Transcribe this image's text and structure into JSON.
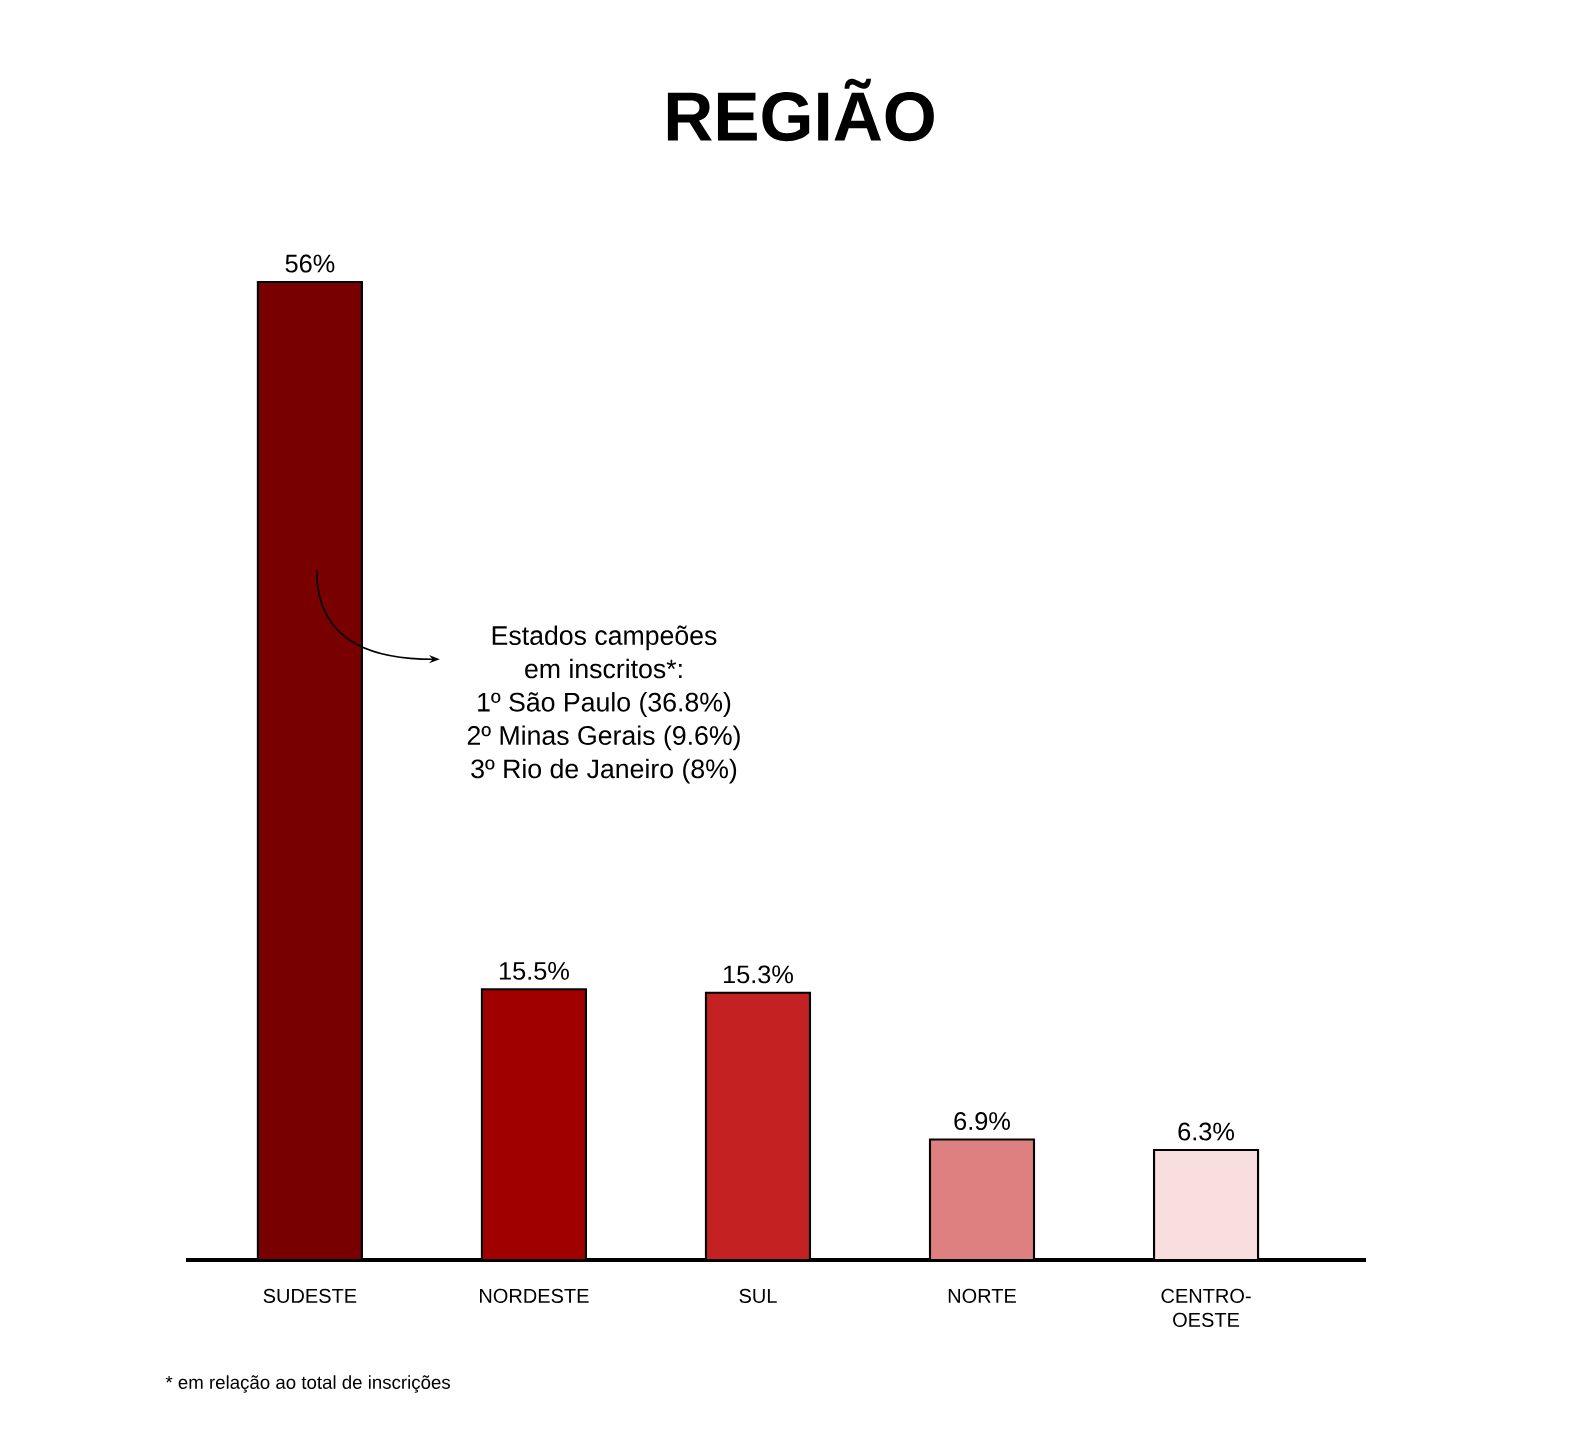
{
  "chart_data": {
    "type": "bar",
    "title": "REGIÃO",
    "categories": [
      "SUDESTE",
      "NORDESTE",
      "SUL",
      "NORTE",
      "CENTRO-OESTE"
    ],
    "values": [
      56,
      15.5,
      15.3,
      6.9,
      6.3
    ],
    "colors": [
      "#780000",
      "#a10000",
      "#c42222",
      "#df8080",
      "#f9dee0"
    ],
    "value_labels": [
      "56%",
      "15.5%",
      "15.3%",
      "6.9%",
      "6.3%"
    ],
    "annotations": [
      "Estados campeões em inscritos*:",
      "1º São Paulo (36.8%)",
      "2º Minas Gerais (9.6%)",
      "3º Rio de Janeiro (8%)",
      "* em relação ao total de inscrições"
    ]
  }
}
